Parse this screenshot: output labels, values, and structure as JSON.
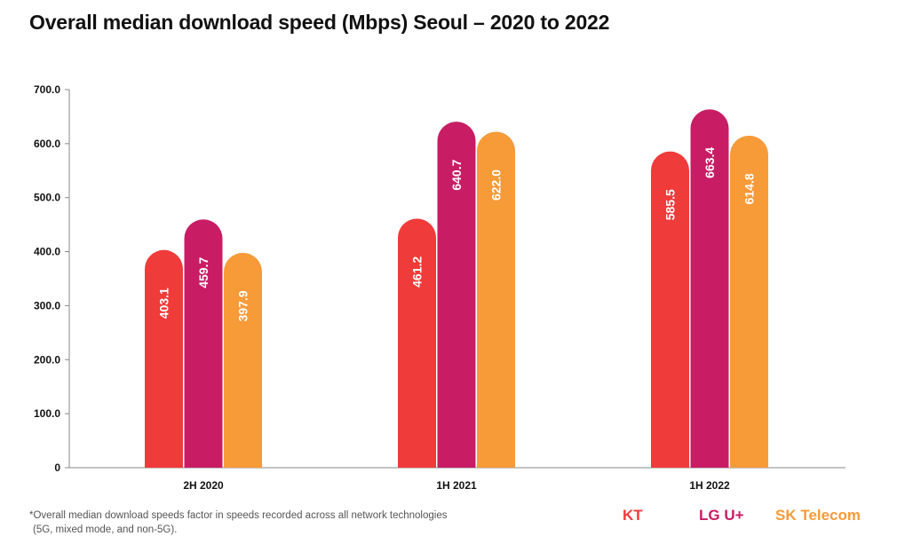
{
  "chart_data": {
    "type": "bar",
    "title": "Overall median download speed (Mbps) Seoul – 2020 to 2022",
    "categories": [
      "2H 2020",
      "1H 2021",
      "1H 2022"
    ],
    "series": [
      {
        "name": "KT",
        "color": "#ef3b3a",
        "values": [
          403.1,
          461.2,
          585.5
        ],
        "labels": [
          "403.1",
          "461.2",
          "585.5"
        ]
      },
      {
        "name": "LG U+",
        "color": "#c81d65",
        "values": [
          459.7,
          640.7,
          663.4
        ],
        "labels": [
          "459.7",
          "640.7",
          "663.4"
        ]
      },
      {
        "name": "SK Telecom",
        "color": "#f79a38",
        "values": [
          397.9,
          622.0,
          614.8
        ],
        "labels": [
          "397.9",
          "622.0",
          "614.8"
        ]
      }
    ],
    "yticks": [
      "0",
      "100.0",
      "200.0",
      "300.0",
      "400.0",
      "500.0",
      "600.0",
      "700.0"
    ],
    "ylim": [
      0,
      700
    ],
    "xlabel": "",
    "ylabel": "",
    "legend_position": "bottom-right",
    "footnote": [
      "*Overall median download speeds factor in speeds recorded across all network technologies",
      "(5G, mixed mode, and non-5G)."
    ]
  }
}
